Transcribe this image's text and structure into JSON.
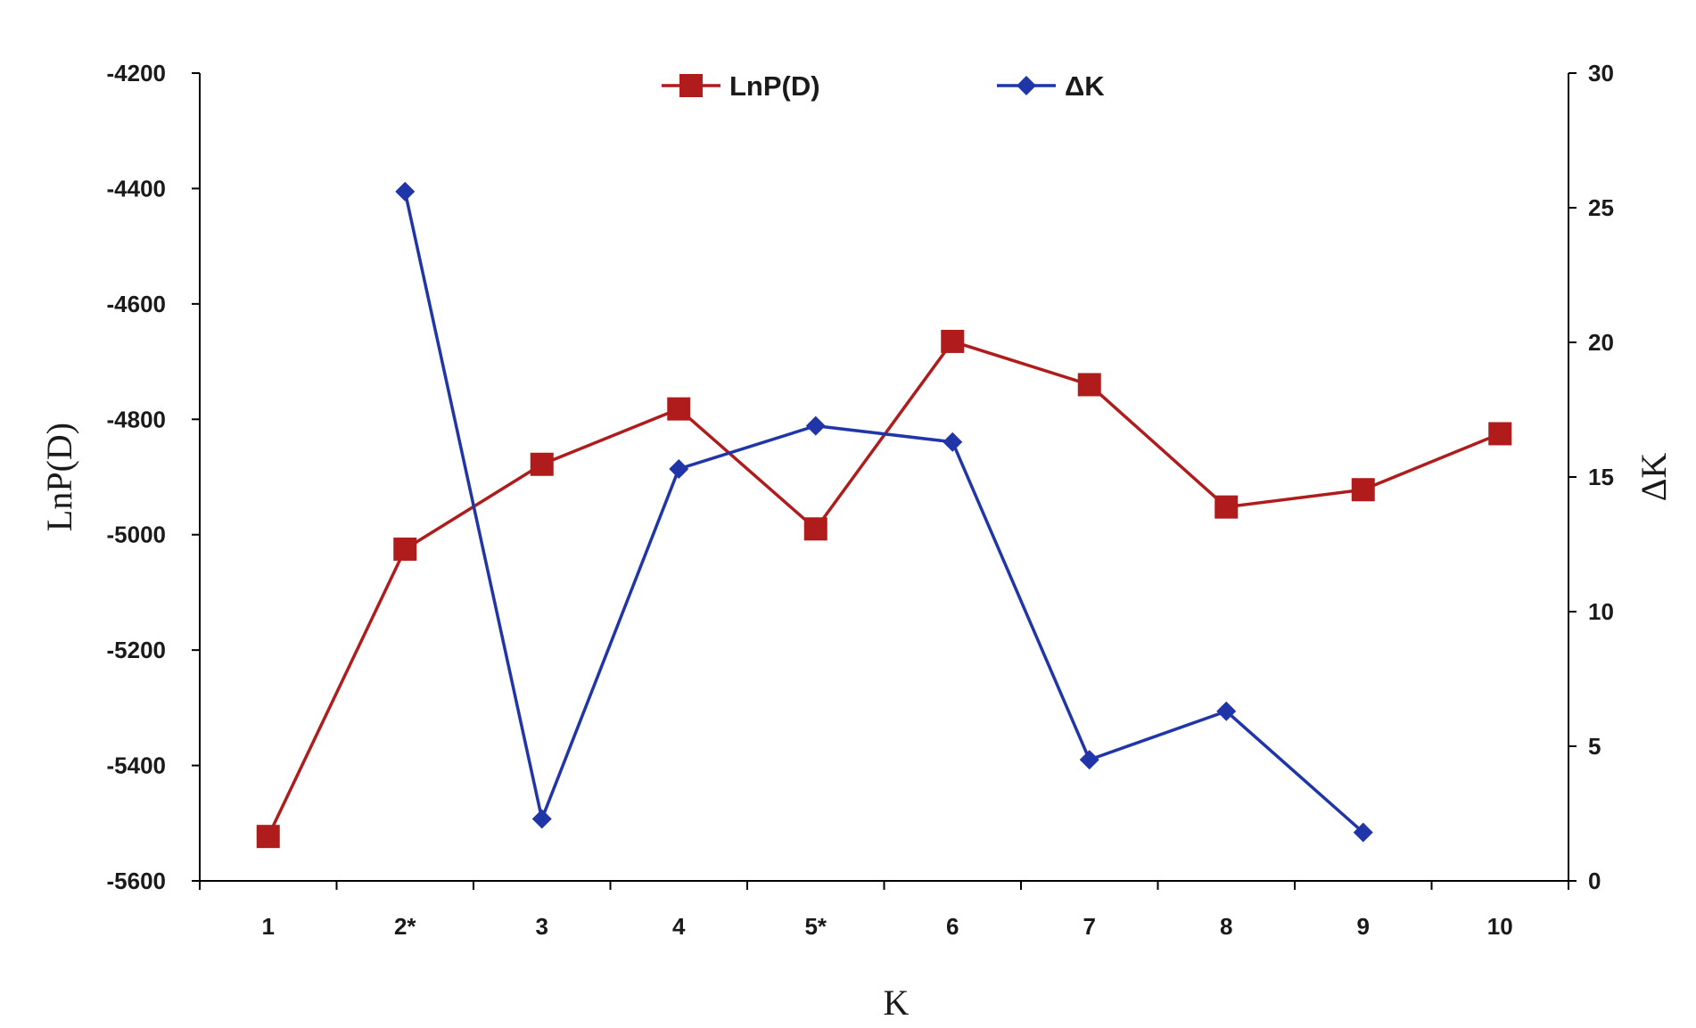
{
  "chart_data": {
    "type": "line",
    "categories": [
      "1",
      "2*",
      "3",
      "4",
      "5*",
      "6",
      "7",
      "8",
      "9",
      "10"
    ],
    "xlabel": "K",
    "ylabel": "LnP(D)",
    "y2label": "ΔK",
    "ylim": [
      -5600,
      -4200
    ],
    "y_ticks": [
      "-4200",
      "-4400",
      "-4600",
      "-4800",
      "-5000",
      "-5200",
      "-5400",
      "-5600"
    ],
    "y2lim": [
      0,
      30
    ],
    "y2_ticks": [
      "30",
      "25",
      "20",
      "15",
      "10",
      "5",
      "0"
    ],
    "legend_position": "top-center",
    "grid": false,
    "series": [
      {
        "name": "LnP(D)",
        "axis": "left",
        "color": "#b01c1c",
        "marker": "square",
        "values": [
          -5523,
          -5025,
          -4878,
          -4782,
          -4990,
          -4665,
          -4740,
          -4952,
          -4922,
          -4825
        ]
      },
      {
        "name": "ΔK",
        "axis": "right",
        "color": "#1f35a8",
        "marker": "diamond",
        "values": [
          null,
          25.6,
          2.3,
          15.3,
          16.9,
          16.3,
          4.5,
          6.3,
          1.8,
          null
        ]
      }
    ]
  }
}
